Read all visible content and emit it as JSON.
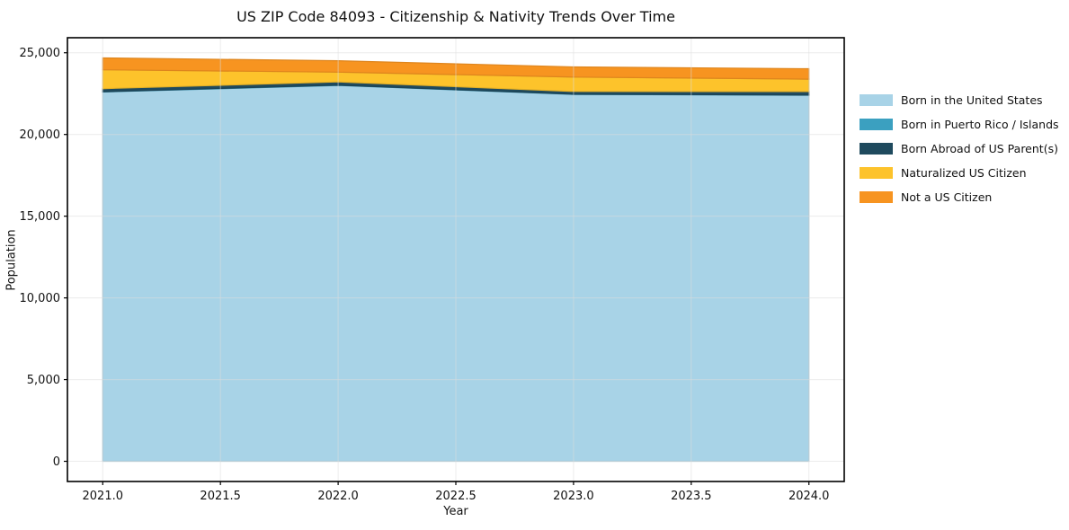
{
  "figure": {
    "title": "US ZIP Code 84093 - Citizenship & Nativity Trends Over Time",
    "xlabel": "Year",
    "ylabel": "Population"
  },
  "legend": {
    "items": [
      {
        "label": "Born in the United States",
        "color": "#A8D3E7"
      },
      {
        "label": "Born in Puerto Rico / Islands",
        "color": "#3BA0C0"
      },
      {
        "label": "Born Abroad of US Parent(s)",
        "color": "#1F4A5E"
      },
      {
        "label": "Naturalized US Citizen",
        "color": "#FDC32B"
      },
      {
        "label": "Not a US Citizen",
        "color": "#F79420"
      }
    ]
  },
  "chart_data": {
    "type": "area",
    "stacked": true,
    "title": "US ZIP Code 84093 - Citizenship & Nativity Trends Over Time",
    "xlabel": "Year",
    "ylabel": "Population",
    "x": [
      2021,
      2022,
      2023,
      2024
    ],
    "series": [
      {
        "id": "born-us",
        "name": "Born in the United States",
        "color": "#A8D3E7",
        "values": [
          22600,
          23000,
          22450,
          22400
        ]
      },
      {
        "id": "pr-islands",
        "name": "Born in Puerto Rico / Islands",
        "color": "#3BA0C0",
        "values": [
          15,
          15,
          15,
          15
        ]
      },
      {
        "id": "born-abroad",
        "name": "Born Abroad of US Parent(s)",
        "color": "#1F4A5E",
        "values": [
          190,
          200,
          170,
          210
        ]
      },
      {
        "id": "naturalized",
        "name": "Naturalized US Citizen",
        "color": "#FDC32B",
        "values": [
          1150,
          600,
          880,
          760
        ]
      },
      {
        "id": "not-citizen",
        "name": "Not a US Citizen",
        "color": "#F79420",
        "values": [
          730,
          700,
          620,
          640
        ]
      }
    ],
    "totals": [
      24685,
      24515,
      24120,
      24025
    ],
    "xlim": [
      2020.85,
      2024.15
    ],
    "ylim": [
      -1235,
      25920
    ],
    "xticks": [
      2021.0,
      2021.5,
      2022.0,
      2022.5,
      2023.0,
      2023.5,
      2024.0
    ],
    "xtick_labels": [
      "2021.0",
      "2021.5",
      "2022.0",
      "2022.5",
      "2023.0",
      "2023.5",
      "2024.0"
    ],
    "yticks": [
      0,
      5000,
      10000,
      15000,
      20000,
      25000
    ],
    "ytick_labels": [
      "0",
      "5,000",
      "10,000",
      "15,000",
      "20,000",
      "25,000"
    ],
    "grid": true,
    "grid_above_areas": true,
    "grid_color": "#dcdcdc",
    "spine_color": "#000000",
    "legend_position": "outside-right"
  }
}
